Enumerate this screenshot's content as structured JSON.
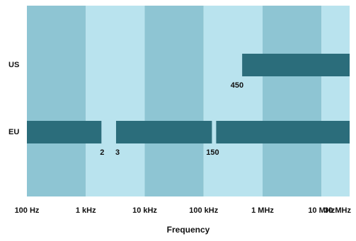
{
  "chart_data": {
    "type": "range-bar",
    "x_label": "Frequency",
    "categories": [
      "US",
      "EU"
    ],
    "bars": [
      {
        "row": 0,
        "start": 450000,
        "end": 30000000,
        "start_label": "450"
      },
      {
        "row": 1,
        "start": 100,
        "end": 2000,
        "end_label": "2"
      },
      {
        "row": 1,
        "start": 3000,
        "end": 150000,
        "start_label": "3",
        "end_label": "150"
      },
      {
        "row": 1,
        "start": 150000,
        "end": 30000000
      }
    ],
    "x_log": true,
    "xlim": [
      100,
      30000000
    ],
    "xticks": [
      {
        "value": 100,
        "label": "100 Hz"
      },
      {
        "value": 1000,
        "label": "1 kHz"
      },
      {
        "value": 10000,
        "label": "10 kHz"
      },
      {
        "value": 100000,
        "label": "100 kHz"
      },
      {
        "value": 1000000,
        "label": "1 MHz"
      },
      {
        "value": 10000000,
        "label": "10 MHz"
      },
      {
        "value": 30000000,
        "label": "30 MHz"
      }
    ],
    "bar_color": "#2b6d7b",
    "band_colors": [
      "#8ec5d3",
      "#b9e3ee"
    ]
  }
}
